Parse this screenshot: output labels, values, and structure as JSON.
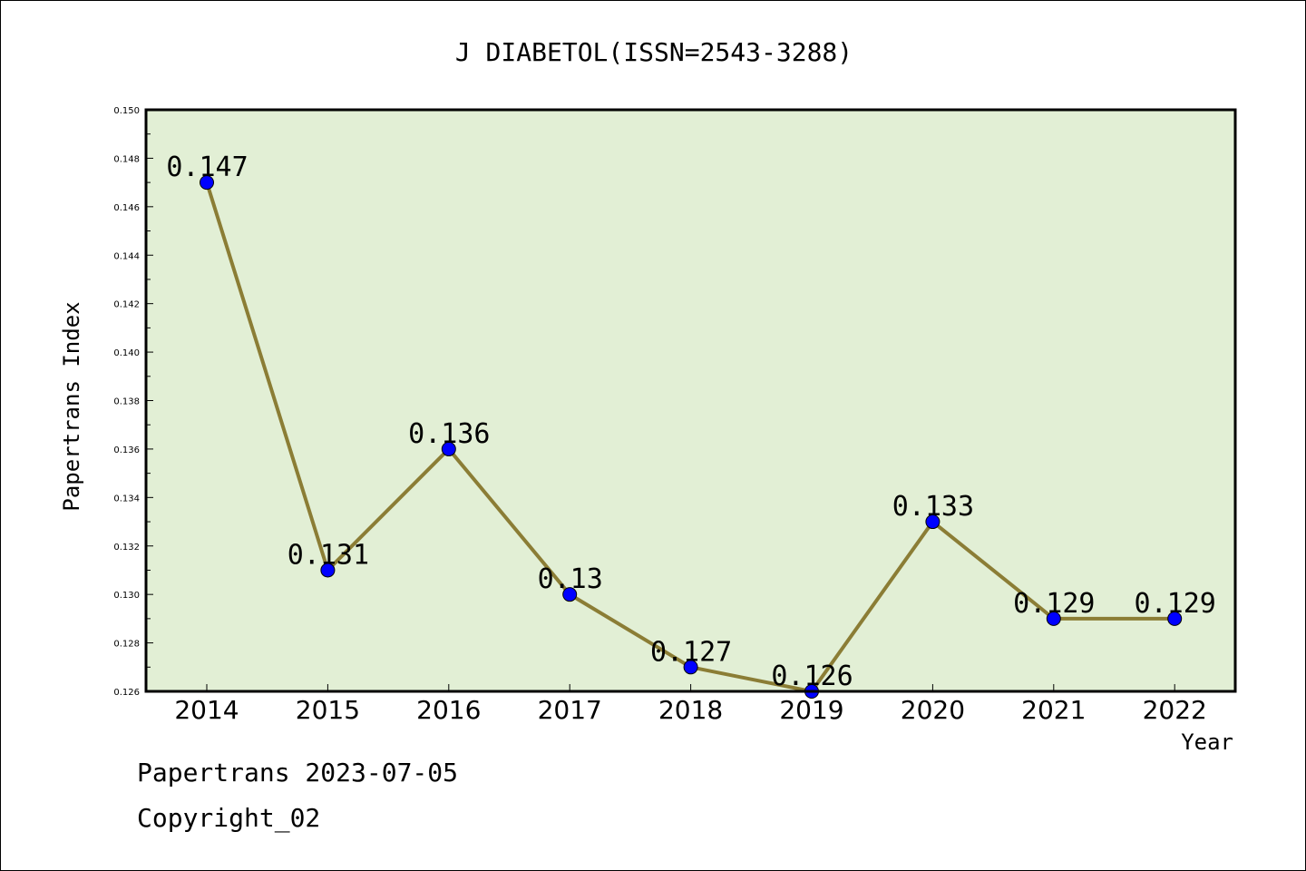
{
  "chart_data": {
    "type": "line",
    "title": "J DIABETOL(ISSN=2543-3288)",
    "xlabel": "Year",
    "ylabel": "Papertrans Index",
    "categories": [
      "2014",
      "2015",
      "2016",
      "2017",
      "2018",
      "2019",
      "2020",
      "2021",
      "2022"
    ],
    "values": [
      0.147,
      0.131,
      0.136,
      0.13,
      0.127,
      0.126,
      0.133,
      0.129,
      0.129
    ],
    "data_labels": [
      "0.147",
      "0.131",
      "0.136",
      "0.13",
      "0.127",
      "0.126",
      "0.133",
      "0.129",
      "0.129"
    ],
    "ylim": [
      0.126,
      0.15
    ],
    "yticks": [
      "0.126",
      "0.128",
      "0.130",
      "0.132",
      "0.134",
      "0.136",
      "0.138",
      "0.140",
      "0.142",
      "0.144",
      "0.146",
      "0.148",
      "0.150"
    ],
    "grid": false,
    "colors": {
      "plot_background": "#e2efd5",
      "line": "#8b7d35",
      "marker": "#0000ff"
    }
  },
  "footer": {
    "line1": "Papertrans 2023-07-05",
    "line2": "Copyright_02"
  }
}
